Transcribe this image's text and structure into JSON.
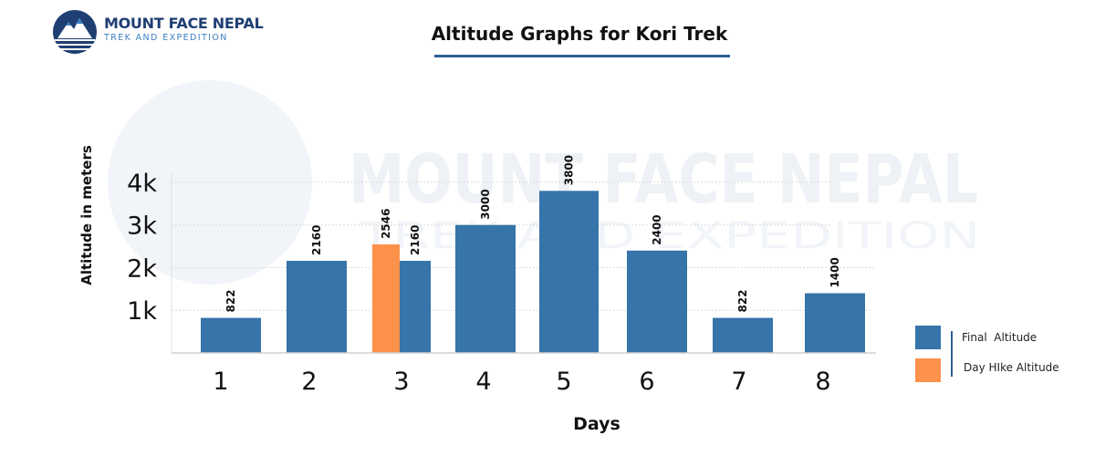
{
  "brand": {
    "name": "MOUNT FACE NEPAL",
    "tagline": "TREK AND EXPEDITION"
  },
  "colors": {
    "final_altitude": "#3674a9",
    "day_hike_altitude": "#fc914a",
    "accent": "#2e5e93"
  },
  "chart_data": {
    "type": "bar",
    "title": "Altitude Graphs for Kori Trek",
    "xlabel": "Days",
    "ylabel": "Altitude in meters",
    "ylim": [
      0,
      4000
    ],
    "yticks": [
      {
        "value": 1000,
        "label": "1k"
      },
      {
        "value": 2000,
        "label": "2k"
      },
      {
        "value": 3000,
        "label": "3k"
      },
      {
        "value": 4000,
        "label": "4k"
      }
    ],
    "grid": true,
    "legend_position": "bottom-right",
    "categories": [
      "1",
      "2",
      "3",
      "4",
      "5",
      "6",
      "7",
      "8"
    ],
    "series": [
      {
        "name": "Final  Altitude",
        "values": [
          822,
          2160,
          2160,
          3000,
          3800,
          2400,
          822,
          1400
        ]
      },
      {
        "name": "Day HIke Altitude",
        "values": [
          null,
          null,
          2546,
          null,
          null,
          null,
          null,
          null
        ]
      }
    ]
  },
  "watermark": {
    "text": "MOUNT FACE NEPAL",
    "sub": "TREK AND EXPEDITION"
  }
}
